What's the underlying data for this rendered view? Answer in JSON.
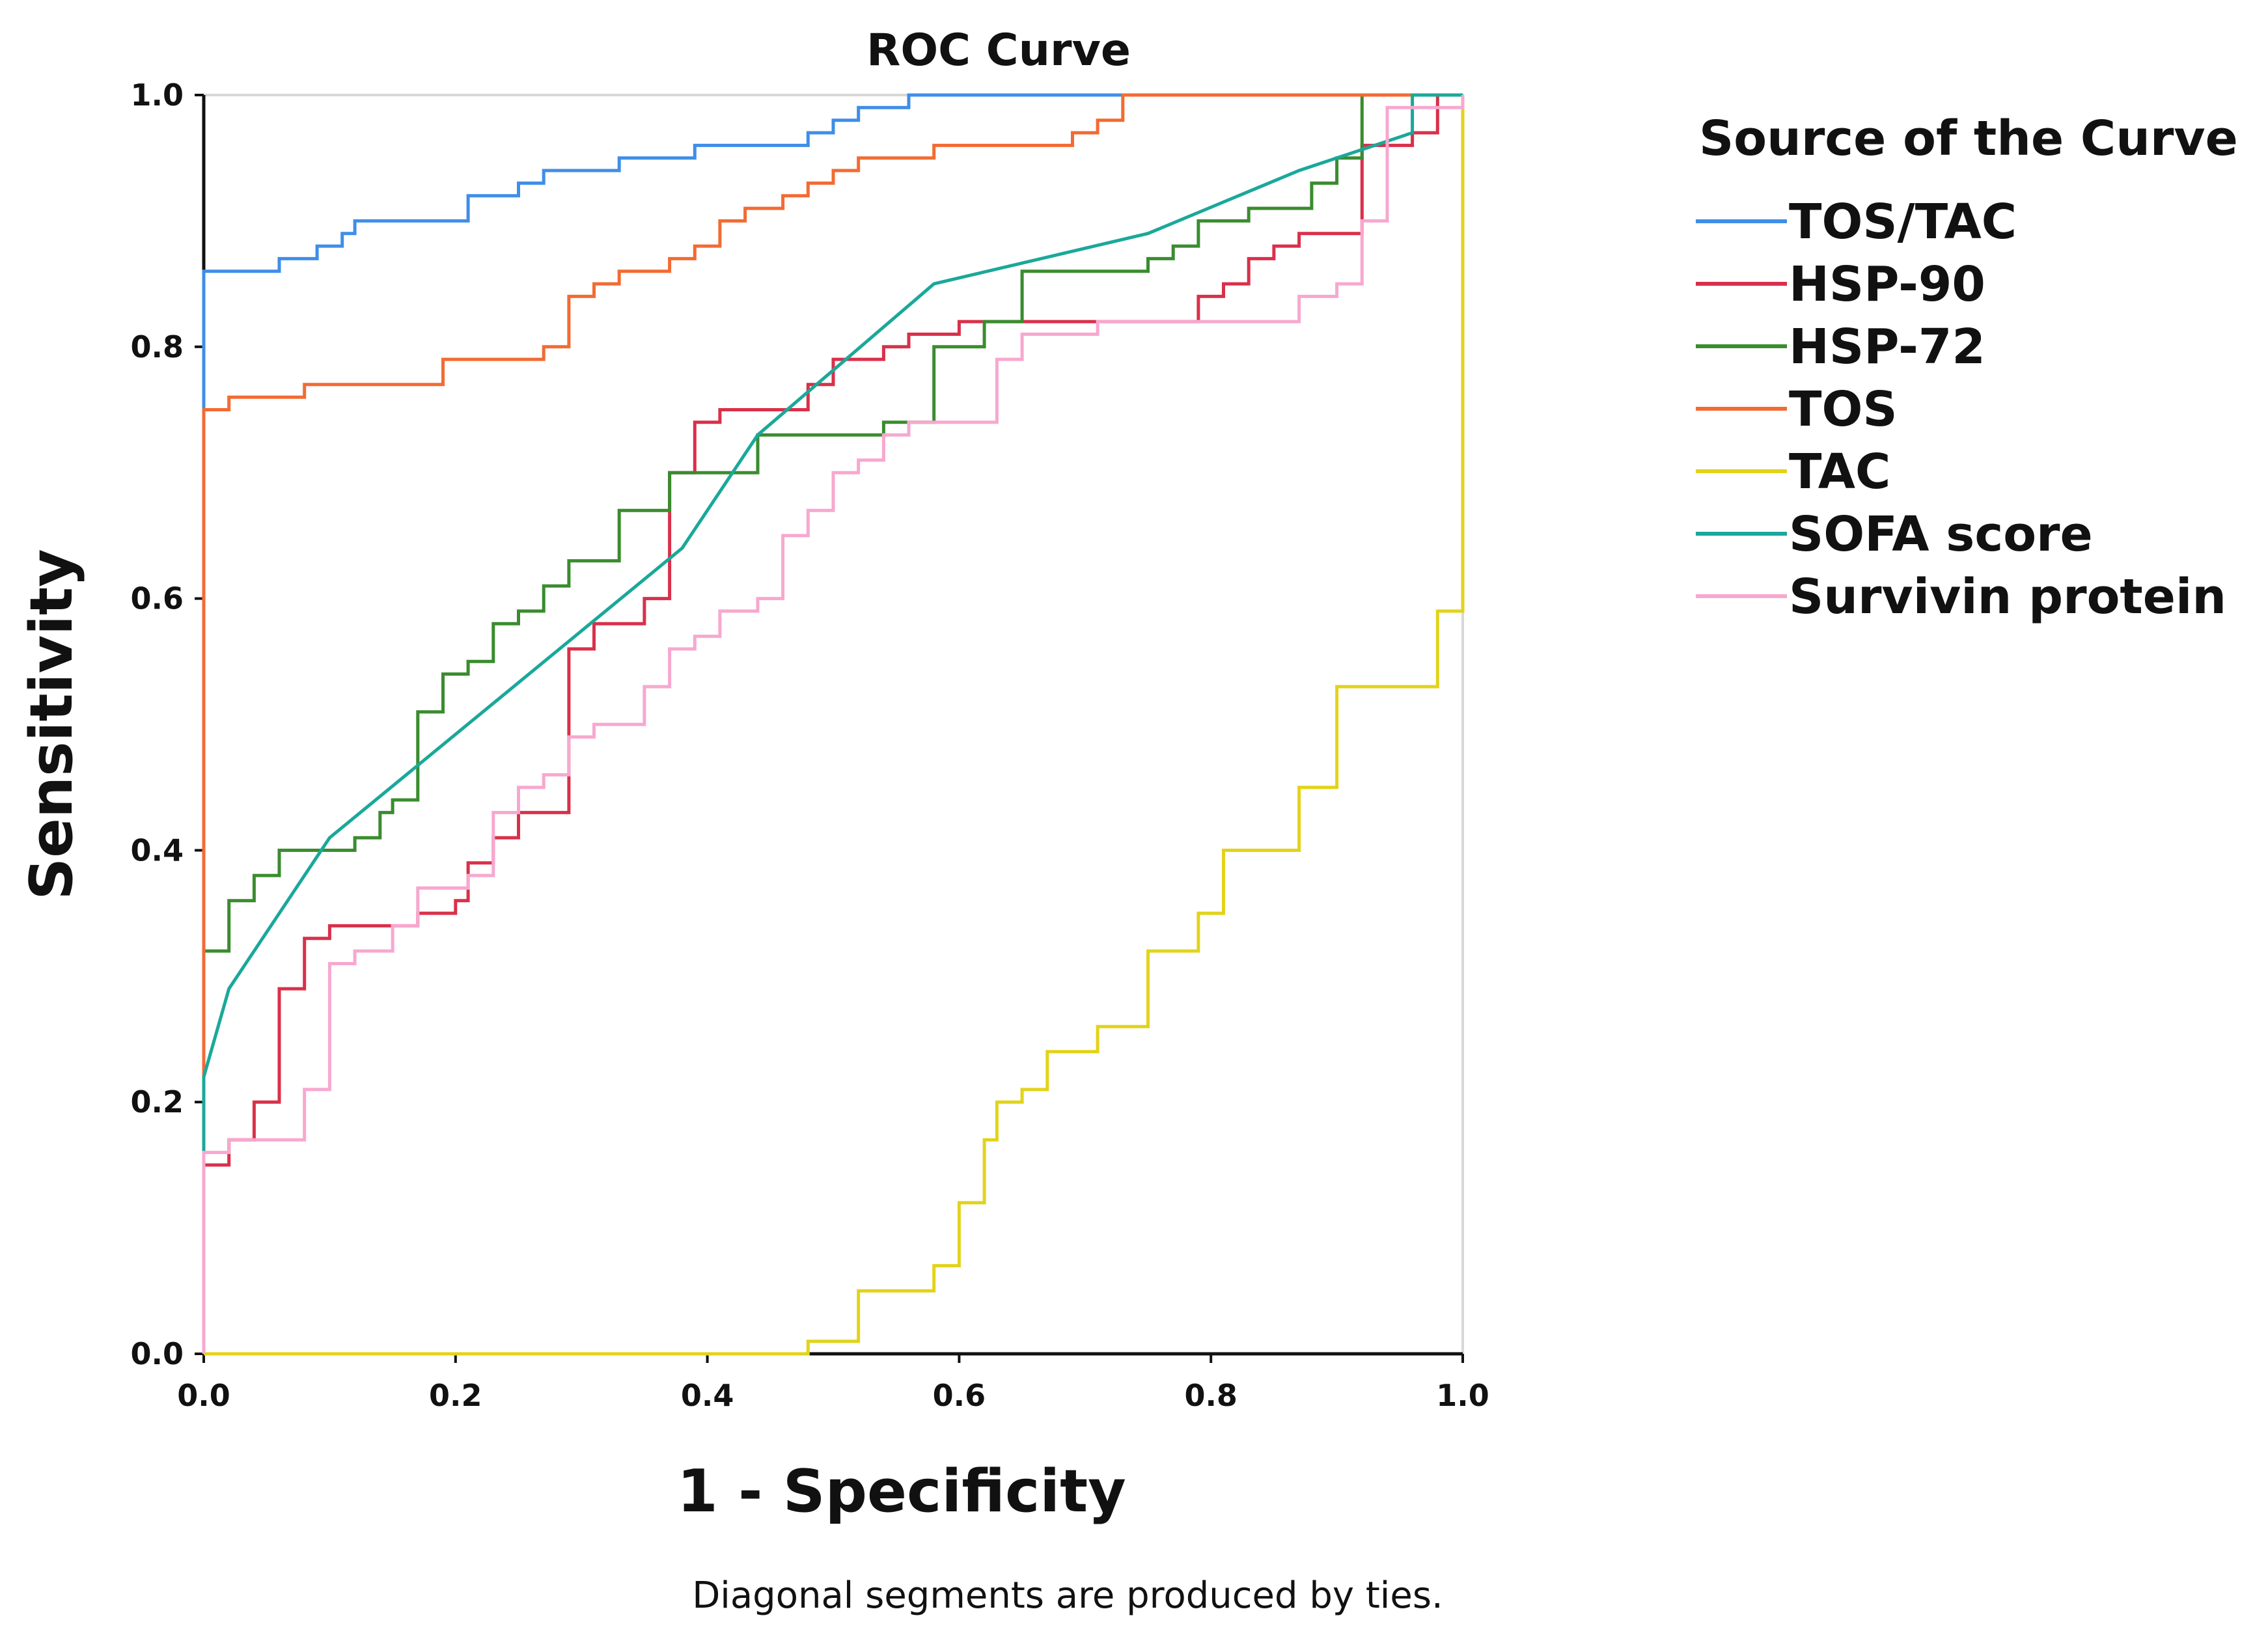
{
  "chart_data": {
    "type": "line",
    "title": "ROC Curve",
    "xlabel": "1 - Specificity",
    "ylabel": "Sensitivity",
    "xlim": [
      0,
      1
    ],
    "ylim": [
      0,
      1
    ],
    "x_ticks": [
      "0.0",
      "0.2",
      "0.4",
      "0.6",
      "0.8",
      "1.0"
    ],
    "y_ticks": [
      "0.0",
      "0.2",
      "0.4",
      "0.6",
      "0.8",
      "1.0"
    ],
    "legend_title": "Source of the Curve",
    "legend_position": "right",
    "note": "Diagonal segments are produced by ties.",
    "series": [
      {
        "name": "TOS/TAC",
        "color": "#3f8ee8",
        "points": [
          [
            0,
            0.75
          ],
          [
            0,
            0.86
          ],
          [
            0.06,
            0.86
          ],
          [
            0.06,
            0.87
          ],
          [
            0.09,
            0.87
          ],
          [
            0.09,
            0.88
          ],
          [
            0.11,
            0.88
          ],
          [
            0.11,
            0.89
          ],
          [
            0.12,
            0.89
          ],
          [
            0.12,
            0.9
          ],
          [
            0.21,
            0.9
          ],
          [
            0.21,
            0.92
          ],
          [
            0.25,
            0.92
          ],
          [
            0.25,
            0.93
          ],
          [
            0.27,
            0.93
          ],
          [
            0.27,
            0.94
          ],
          [
            0.33,
            0.94
          ],
          [
            0.33,
            0.95
          ],
          [
            0.39,
            0.95
          ],
          [
            0.39,
            0.96
          ],
          [
            0.48,
            0.96
          ],
          [
            0.48,
            0.97
          ],
          [
            0.5,
            0.97
          ],
          [
            0.5,
            0.98
          ],
          [
            0.52,
            0.98
          ],
          [
            0.52,
            0.99
          ],
          [
            0.56,
            0.99
          ],
          [
            0.56,
            1.0
          ],
          [
            1.0,
            1.0
          ]
        ]
      },
      {
        "name": "HSP-90",
        "color": "#d9304a",
        "points": [
          [
            0,
            0.15
          ],
          [
            0.02,
            0.15
          ],
          [
            0.02,
            0.17
          ],
          [
            0.04,
            0.17
          ],
          [
            0.04,
            0.2
          ],
          [
            0.06,
            0.2
          ],
          [
            0.06,
            0.29
          ],
          [
            0.08,
            0.29
          ],
          [
            0.08,
            0.33
          ],
          [
            0.1,
            0.33
          ],
          [
            0.1,
            0.34
          ],
          [
            0.17,
            0.34
          ],
          [
            0.17,
            0.35
          ],
          [
            0.2,
            0.35
          ],
          [
            0.2,
            0.36
          ],
          [
            0.21,
            0.36
          ],
          [
            0.21,
            0.39
          ],
          [
            0.23,
            0.39
          ],
          [
            0.23,
            0.41
          ],
          [
            0.25,
            0.41
          ],
          [
            0.25,
            0.43
          ],
          [
            0.29,
            0.43
          ],
          [
            0.29,
            0.56
          ],
          [
            0.31,
            0.56
          ],
          [
            0.31,
            0.58
          ],
          [
            0.35,
            0.58
          ],
          [
            0.35,
            0.6
          ],
          [
            0.37,
            0.6
          ],
          [
            0.37,
            0.7
          ],
          [
            0.39,
            0.7
          ],
          [
            0.39,
            0.74
          ],
          [
            0.41,
            0.74
          ],
          [
            0.41,
            0.75
          ],
          [
            0.48,
            0.75
          ],
          [
            0.48,
            0.77
          ],
          [
            0.5,
            0.77
          ],
          [
            0.5,
            0.79
          ],
          [
            0.54,
            0.79
          ],
          [
            0.54,
            0.8
          ],
          [
            0.56,
            0.8
          ],
          [
            0.56,
            0.81
          ],
          [
            0.6,
            0.81
          ],
          [
            0.6,
            0.82
          ],
          [
            0.79,
            0.82
          ],
          [
            0.79,
            0.84
          ],
          [
            0.81,
            0.84
          ],
          [
            0.81,
            0.85
          ],
          [
            0.83,
            0.85
          ],
          [
            0.83,
            0.87
          ],
          [
            0.85,
            0.87
          ],
          [
            0.85,
            0.88
          ],
          [
            0.87,
            0.88
          ],
          [
            0.87,
            0.89
          ],
          [
            0.92,
            0.89
          ],
          [
            0.92,
            0.96
          ],
          [
            0.96,
            0.96
          ],
          [
            0.96,
            0.97
          ],
          [
            0.98,
            0.97
          ],
          [
            0.98,
            1.0
          ],
          [
            1.0,
            1.0
          ]
        ]
      },
      {
        "name": "HSP-72",
        "color": "#3a8c2f",
        "points": [
          [
            0,
            0.32
          ],
          [
            0.02,
            0.32
          ],
          [
            0.02,
            0.36
          ],
          [
            0.04,
            0.36
          ],
          [
            0.04,
            0.38
          ],
          [
            0.06,
            0.38
          ],
          [
            0.06,
            0.4
          ],
          [
            0.12,
            0.4
          ],
          [
            0.12,
            0.41
          ],
          [
            0.14,
            0.41
          ],
          [
            0.14,
            0.43
          ],
          [
            0.15,
            0.43
          ],
          [
            0.15,
            0.44
          ],
          [
            0.17,
            0.44
          ],
          [
            0.17,
            0.51
          ],
          [
            0.19,
            0.51
          ],
          [
            0.19,
            0.54
          ],
          [
            0.21,
            0.54
          ],
          [
            0.21,
            0.55
          ],
          [
            0.23,
            0.55
          ],
          [
            0.23,
            0.58
          ],
          [
            0.25,
            0.58
          ],
          [
            0.25,
            0.59
          ],
          [
            0.27,
            0.59
          ],
          [
            0.27,
            0.61
          ],
          [
            0.29,
            0.61
          ],
          [
            0.29,
            0.63
          ],
          [
            0.33,
            0.63
          ],
          [
            0.33,
            0.67
          ],
          [
            0.37,
            0.67
          ],
          [
            0.37,
            0.7
          ],
          [
            0.44,
            0.7
          ],
          [
            0.44,
            0.73
          ],
          [
            0.54,
            0.73
          ],
          [
            0.54,
            0.74
          ],
          [
            0.58,
            0.74
          ],
          [
            0.58,
            0.8
          ],
          [
            0.62,
            0.8
          ],
          [
            0.62,
            0.82
          ],
          [
            0.65,
            0.82
          ],
          [
            0.65,
            0.86
          ],
          [
            0.75,
            0.86
          ],
          [
            0.75,
            0.87
          ],
          [
            0.77,
            0.87
          ],
          [
            0.77,
            0.88
          ],
          [
            0.79,
            0.88
          ],
          [
            0.79,
            0.9
          ],
          [
            0.83,
            0.9
          ],
          [
            0.83,
            0.91
          ],
          [
            0.88,
            0.91
          ],
          [
            0.88,
            0.93
          ],
          [
            0.9,
            0.93
          ],
          [
            0.9,
            0.95
          ],
          [
            0.92,
            0.95
          ],
          [
            0.92,
            1.0
          ],
          [
            1.0,
            1.0
          ]
        ]
      },
      {
        "name": "TOS",
        "color": "#f26b33",
        "points": [
          [
            0,
            0
          ],
          [
            0,
            0.75
          ],
          [
            0.02,
            0.75
          ],
          [
            0.02,
            0.76
          ],
          [
            0.08,
            0.76
          ],
          [
            0.08,
            0.77
          ],
          [
            0.19,
            0.77
          ],
          [
            0.19,
            0.79
          ],
          [
            0.27,
            0.79
          ],
          [
            0.27,
            0.8
          ],
          [
            0.29,
            0.8
          ],
          [
            0.29,
            0.84
          ],
          [
            0.31,
            0.84
          ],
          [
            0.31,
            0.85
          ],
          [
            0.33,
            0.85
          ],
          [
            0.33,
            0.86
          ],
          [
            0.37,
            0.86
          ],
          [
            0.37,
            0.87
          ],
          [
            0.39,
            0.87
          ],
          [
            0.39,
            0.88
          ],
          [
            0.41,
            0.88
          ],
          [
            0.41,
            0.9
          ],
          [
            0.43,
            0.9
          ],
          [
            0.43,
            0.91
          ],
          [
            0.46,
            0.91
          ],
          [
            0.46,
            0.92
          ],
          [
            0.48,
            0.92
          ],
          [
            0.48,
            0.93
          ],
          [
            0.5,
            0.93
          ],
          [
            0.5,
            0.94
          ],
          [
            0.52,
            0.94
          ],
          [
            0.52,
            0.95
          ],
          [
            0.58,
            0.95
          ],
          [
            0.58,
            0.96
          ],
          [
            0.69,
            0.96
          ],
          [
            0.69,
            0.97
          ],
          [
            0.71,
            0.97
          ],
          [
            0.71,
            0.98
          ],
          [
            0.73,
            0.98
          ],
          [
            0.73,
            0.99
          ],
          [
            0.73,
            1.0
          ],
          [
            1.0,
            1.0
          ]
        ]
      },
      {
        "name": "TAC",
        "color": "#e2d31a",
        "points": [
          [
            0,
            0
          ],
          [
            0.48,
            0
          ],
          [
            0.48,
            0.01
          ],
          [
            0.52,
            0.01
          ],
          [
            0.52,
            0.05
          ],
          [
            0.58,
            0.05
          ],
          [
            0.58,
            0.07
          ],
          [
            0.6,
            0.07
          ],
          [
            0.6,
            0.12
          ],
          [
            0.62,
            0.12
          ],
          [
            0.62,
            0.17
          ],
          [
            0.63,
            0.17
          ],
          [
            0.63,
            0.2
          ],
          [
            0.65,
            0.2
          ],
          [
            0.65,
            0.21
          ],
          [
            0.67,
            0.21
          ],
          [
            0.67,
            0.24
          ],
          [
            0.71,
            0.24
          ],
          [
            0.71,
            0.26
          ],
          [
            0.75,
            0.26
          ],
          [
            0.75,
            0.32
          ],
          [
            0.79,
            0.32
          ],
          [
            0.79,
            0.35
          ],
          [
            0.81,
            0.35
          ],
          [
            0.81,
            0.4
          ],
          [
            0.87,
            0.4
          ],
          [
            0.87,
            0.45
          ],
          [
            0.9,
            0.45
          ],
          [
            0.9,
            0.53
          ],
          [
            0.98,
            0.53
          ],
          [
            0.98,
            0.59
          ],
          [
            1.0,
            0.59
          ],
          [
            1.0,
            1.0
          ]
        ]
      },
      {
        "name": "SOFA score",
        "color": "#1aa89a",
        "points": [
          [
            0,
            0.16
          ],
          [
            0,
            0.22
          ],
          [
            0.02,
            0.29
          ],
          [
            0.1,
            0.41
          ],
          [
            0.38,
            0.64
          ],
          [
            0.44,
            0.73
          ],
          [
            0.58,
            0.85
          ],
          [
            0.75,
            0.89
          ],
          [
            0.87,
            0.94
          ],
          [
            0.96,
            0.97
          ],
          [
            0.96,
            1.0
          ],
          [
            1.0,
            1.0
          ]
        ]
      },
      {
        "name": "Survivin protein",
        "color": "#f7a8cf",
        "points": [
          [
            0,
            0
          ],
          [
            0,
            0.16
          ],
          [
            0.02,
            0.16
          ],
          [
            0.02,
            0.17
          ],
          [
            0.08,
            0.17
          ],
          [
            0.08,
            0.21
          ],
          [
            0.1,
            0.21
          ],
          [
            0.1,
            0.31
          ],
          [
            0.12,
            0.31
          ],
          [
            0.12,
            0.32
          ],
          [
            0.15,
            0.32
          ],
          [
            0.15,
            0.34
          ],
          [
            0.17,
            0.34
          ],
          [
            0.17,
            0.37
          ],
          [
            0.21,
            0.37
          ],
          [
            0.21,
            0.38
          ],
          [
            0.23,
            0.38
          ],
          [
            0.23,
            0.43
          ],
          [
            0.25,
            0.43
          ],
          [
            0.25,
            0.45
          ],
          [
            0.27,
            0.45
          ],
          [
            0.27,
            0.46
          ],
          [
            0.29,
            0.46
          ],
          [
            0.29,
            0.49
          ],
          [
            0.31,
            0.49
          ],
          [
            0.31,
            0.5
          ],
          [
            0.35,
            0.5
          ],
          [
            0.35,
            0.53
          ],
          [
            0.37,
            0.53
          ],
          [
            0.37,
            0.56
          ],
          [
            0.39,
            0.56
          ],
          [
            0.39,
            0.57
          ],
          [
            0.41,
            0.57
          ],
          [
            0.41,
            0.59
          ],
          [
            0.44,
            0.59
          ],
          [
            0.44,
            0.6
          ],
          [
            0.46,
            0.6
          ],
          [
            0.46,
            0.65
          ],
          [
            0.48,
            0.65
          ],
          [
            0.48,
            0.67
          ],
          [
            0.5,
            0.67
          ],
          [
            0.5,
            0.7
          ],
          [
            0.52,
            0.7
          ],
          [
            0.52,
            0.71
          ],
          [
            0.54,
            0.71
          ],
          [
            0.54,
            0.73
          ],
          [
            0.56,
            0.73
          ],
          [
            0.56,
            0.74
          ],
          [
            0.63,
            0.74
          ],
          [
            0.63,
            0.79
          ],
          [
            0.65,
            0.79
          ],
          [
            0.65,
            0.81
          ],
          [
            0.71,
            0.81
          ],
          [
            0.71,
            0.82
          ],
          [
            0.87,
            0.82
          ],
          [
            0.87,
            0.84
          ],
          [
            0.9,
            0.84
          ],
          [
            0.9,
            0.85
          ],
          [
            0.92,
            0.85
          ],
          [
            0.92,
            0.9
          ],
          [
            0.94,
            0.9
          ],
          [
            0.94,
            0.99
          ],
          [
            1.0,
            0.99
          ],
          [
            1.0,
            1.0
          ]
        ]
      }
    ]
  }
}
